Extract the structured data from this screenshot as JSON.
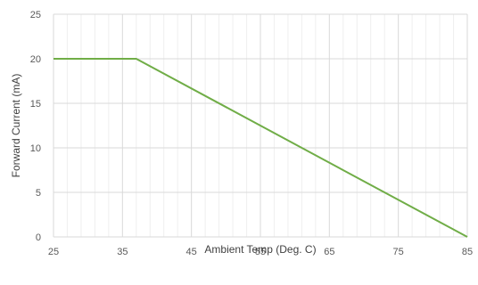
{
  "chart_data": {
    "type": "line",
    "xlabel": "Ambient Temp (Deg. C)",
    "ylabel": "Forward Current (mA)",
    "xlim": [
      25,
      85
    ],
    "ylim": [
      0,
      25
    ],
    "x_ticks": [
      25,
      35,
      45,
      55,
      65,
      75,
      85
    ],
    "y_ticks": [
      0,
      5,
      10,
      15,
      20,
      25
    ],
    "x_minor_step": 2,
    "grid": true,
    "series": [
      {
        "color": "#70AD47",
        "x": [
          25,
          37,
          85
        ],
        "y": [
          20,
          20,
          0
        ]
      }
    ]
  }
}
